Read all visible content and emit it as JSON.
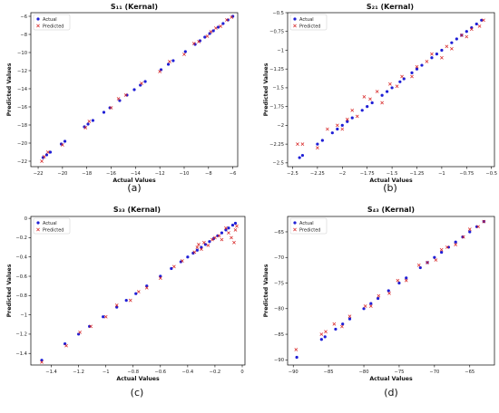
{
  "chart_data": [
    {
      "type": "scatter",
      "title": "S₁₁ (Kernal)",
      "xlabel": "Actual Values",
      "ylabel": "Predicted Values",
      "caption": "(a)",
      "legend": [
        "Actual",
        "Predicted"
      ],
      "legend_position": "top-left",
      "xlim": [
        -22.6,
        -5.6
      ],
      "ylim": [
        -22.6,
        -5.6
      ],
      "xticks": [
        -22,
        -20,
        -18,
        -16,
        -14,
        -12,
        -10,
        -8,
        -6
      ],
      "yticks": [
        -22,
        -20,
        -18,
        -16,
        -14,
        -12,
        -10,
        -8,
        -6
      ],
      "series": [
        {
          "name": "Actual",
          "x": [
            -21.6,
            -21.3,
            -21.0,
            -20.1,
            -19.8,
            -18.2,
            -17.9,
            -17.5,
            -16.6,
            -16.1,
            -15.3,
            -14.7,
            -14.1,
            -13.6,
            -13.2,
            -11.9,
            -11.3,
            -10.9,
            -9.9,
            -9.1,
            -8.7,
            -8.3,
            -7.9,
            -7.6,
            -7.2,
            -6.8,
            -6.4,
            -6.0
          ],
          "y": [
            -21.6,
            -21.3,
            -21.0,
            -20.1,
            -19.8,
            -18.2,
            -17.9,
            -17.5,
            -16.6,
            -16.1,
            -15.3,
            -14.7,
            -14.1,
            -13.6,
            -13.2,
            -11.9,
            -11.3,
            -10.9,
            -9.9,
            -9.1,
            -8.7,
            -8.3,
            -7.9,
            -7.6,
            -7.2,
            -6.8,
            -6.4,
            -6.0
          ]
        },
        {
          "name": "Predicted",
          "x": [
            -21.7,
            -21.5,
            -21.2,
            -20.0,
            -18.1,
            -17.8,
            -16.0,
            -15.4,
            -14.8,
            -13.5,
            -12.0,
            -11.2,
            -10.0,
            -9.2,
            -8.8,
            -8.1,
            -7.8,
            -7.4,
            -7.0,
            -6.5,
            -6.1
          ],
          "y": [
            -22.0,
            -21.5,
            -21.0,
            -20.2,
            -18.3,
            -17.6,
            -16.1,
            -15.1,
            -14.7,
            -13.4,
            -12.1,
            -11.0,
            -10.2,
            -9.0,
            -8.8,
            -8.2,
            -7.7,
            -7.3,
            -7.1,
            -6.4,
            -6.1
          ]
        }
      ]
    },
    {
      "type": "scatter",
      "title": "S₂₁ (Kernal)",
      "xlabel": "Actual Values",
      "ylabel": "Predicted Values",
      "caption": "(b)",
      "legend": [
        "Actual",
        "Predicted"
      ],
      "legend_position": "top-left",
      "xlim": [
        -2.55,
        -0.47
      ],
      "ylim": [
        -2.55,
        -0.5
      ],
      "xticks": [
        -2.5,
        -2.25,
        -2.0,
        -1.75,
        -1.5,
        -1.25,
        -1.0,
        -0.75,
        -0.5
      ],
      "yticks": [
        -2.5,
        -2.25,
        -2.0,
        -1.75,
        -1.5,
        -1.25,
        -1.0,
        -0.75,
        -0.5
      ],
      "series": [
        {
          "name": "Actual",
          "x": [
            -2.43,
            -2.4,
            -2.25,
            -2.2,
            -2.1,
            -2.05,
            -2.0,
            -1.95,
            -1.9,
            -1.8,
            -1.75,
            -1.7,
            -1.6,
            -1.55,
            -1.5,
            -1.42,
            -1.38,
            -1.3,
            -1.25,
            -1.2,
            -1.1,
            -1.05,
            -1.0,
            -0.9,
            -0.85,
            -0.8,
            -0.75,
            -0.7,
            -0.65,
            -0.6
          ],
          "y": [
            -2.43,
            -2.4,
            -2.25,
            -2.2,
            -2.1,
            -2.05,
            -2.0,
            -1.95,
            -1.9,
            -1.8,
            -1.75,
            -1.7,
            -1.6,
            -1.55,
            -1.5,
            -1.42,
            -1.38,
            -1.3,
            -1.25,
            -1.2,
            -1.1,
            -1.05,
            -1.0,
            -0.9,
            -0.85,
            -0.8,
            -0.75,
            -0.7,
            -0.65,
            -0.6
          ]
        },
        {
          "name": "Predicted",
          "x": [
            -2.45,
            -2.4,
            -2.25,
            -2.15,
            -2.05,
            -2.0,
            -1.95,
            -1.9,
            -1.85,
            -1.78,
            -1.72,
            -1.65,
            -1.6,
            -1.52,
            -1.45,
            -1.4,
            -1.3,
            -1.25,
            -1.15,
            -1.1,
            -1.0,
            -0.95,
            -0.9,
            -0.8,
            -0.75,
            -0.7,
            -0.62,
            -0.58
          ],
          "y": [
            -2.25,
            -2.25,
            -2.3,
            -2.05,
            -2.0,
            -2.05,
            -1.92,
            -1.8,
            -1.88,
            -1.62,
            -1.65,
            -1.55,
            -1.7,
            -1.45,
            -1.48,
            -1.35,
            -1.35,
            -1.22,
            -1.15,
            -1.05,
            -1.1,
            -0.95,
            -0.98,
            -0.8,
            -0.82,
            -0.72,
            -0.68,
            -0.6
          ]
        }
      ]
    },
    {
      "type": "scatter",
      "title": "S₃₃ (Kernal)",
      "xlabel": "Actual Values",
      "ylabel": "Predicted Values",
      "caption": "(c)",
      "legend": [
        "Actual",
        "Predicted"
      ],
      "legend_position": "top-left",
      "xlim": [
        -1.55,
        0.02
      ],
      "ylim": [
        -1.52,
        0.02
      ],
      "xticks": [
        -1.4,
        -1.2,
        -1.0,
        -0.8,
        -0.6,
        -0.4,
        -0.2,
        0.0
      ],
      "yticks": [
        -1.4,
        -1.2,
        -1.0,
        -0.8,
        -0.6,
        -0.4,
        -0.2,
        0.0
      ],
      "series": [
        {
          "name": "Actual",
          "x": [
            -1.47,
            -1.3,
            -1.2,
            -1.12,
            -1.02,
            -0.92,
            -0.85,
            -0.78,
            -0.7,
            -0.6,
            -0.52,
            -0.45,
            -0.4,
            -0.36,
            -0.33,
            -0.3,
            -0.27,
            -0.24,
            -0.21,
            -0.18,
            -0.15,
            -0.12,
            -0.1,
            -0.07,
            -0.05
          ],
          "y": [
            -1.47,
            -1.3,
            -1.2,
            -1.12,
            -1.02,
            -0.92,
            -0.85,
            -0.78,
            -0.7,
            -0.6,
            -0.52,
            -0.45,
            -0.4,
            -0.36,
            -0.33,
            -0.3,
            -0.27,
            -0.24,
            -0.21,
            -0.18,
            -0.15,
            -0.12,
            -0.1,
            -0.07,
            -0.05
          ]
        },
        {
          "name": "Predicted",
          "x": [
            -1.47,
            -1.29,
            -1.19,
            -1.11,
            -1.0,
            -0.92,
            -0.82,
            -0.76,
            -0.7,
            -0.6,
            -0.5,
            -0.44,
            -0.35,
            -0.33,
            -0.32,
            -0.3,
            -0.28,
            -0.25,
            -0.22,
            -0.2,
            -0.17,
            -0.15,
            -0.12,
            -0.1,
            -0.08,
            -0.06,
            -0.05,
            -0.04
          ],
          "y": [
            -1.49,
            -1.32,
            -1.18,
            -1.12,
            -1.02,
            -0.9,
            -0.85,
            -0.76,
            -0.72,
            -0.62,
            -0.5,
            -0.44,
            -0.35,
            -0.3,
            -0.27,
            -0.32,
            -0.25,
            -0.28,
            -0.22,
            -0.2,
            -0.18,
            -0.22,
            -0.1,
            -0.15,
            -0.2,
            -0.25,
            -0.12,
            -0.08
          ]
        }
      ]
    },
    {
      "type": "scatter",
      "title": "S₄₃ (Kernal)",
      "xlabel": "Actual Values",
      "ylabel": "Predicted Values",
      "caption": "(d)",
      "legend": [
        "Actual",
        "Predicted"
      ],
      "legend_position": "top-left",
      "xlim": [
        -90.8,
        -61.5
      ],
      "ylim": [
        -91.0,
        -62.0
      ],
      "xticks": [
        -90,
        -85,
        -80,
        -75,
        -70,
        -65
      ],
      "yticks": [
        -90,
        -85,
        -80,
        -75,
        -70,
        -65
      ],
      "series": [
        {
          "name": "Actual",
          "x": [
            -89.5,
            -86.0,
            -85.5,
            -84.0,
            -83.0,
            -82.0,
            -80.0,
            -79.0,
            -78.0,
            -76.5,
            -75.0,
            -74.0,
            -72.0,
            -71.0,
            -70.0,
            -69.0,
            -68.0,
            -67.0,
            -66.0,
            -65.0,
            -64.0,
            -63.0
          ],
          "y": [
            -89.5,
            -86.0,
            -85.5,
            -84.0,
            -83.0,
            -82.0,
            -80.0,
            -79.0,
            -78.0,
            -76.5,
            -75.0,
            -74.0,
            -72.0,
            -71.0,
            -70.0,
            -69.0,
            -68.0,
            -67.0,
            -66.0,
            -65.0,
            -64.0,
            -63.0
          ]
        },
        {
          "name": "Predicted",
          "x": [
            -89.6,
            -86.0,
            -85.4,
            -84.2,
            -83.1,
            -82.0,
            -79.8,
            -79.0,
            -77.9,
            -76.4,
            -75.2,
            -74.0,
            -72.2,
            -71.0,
            -69.8,
            -69.0,
            -68.2,
            -67.0,
            -65.9,
            -65.0,
            -63.8,
            -63.0
          ],
          "y": [
            -88.0,
            -85.0,
            -84.5,
            -83.0,
            -83.5,
            -81.5,
            -79.5,
            -79.5,
            -77.5,
            -77.0,
            -74.5,
            -74.5,
            -71.5,
            -71.0,
            -70.5,
            -68.5,
            -68.0,
            -67.5,
            -66.0,
            -64.5,
            -64.0,
            -63.0
          ]
        }
      ]
    }
  ],
  "colors": {
    "actual": "#1f1fd6",
    "predicted": "#d62020"
  }
}
